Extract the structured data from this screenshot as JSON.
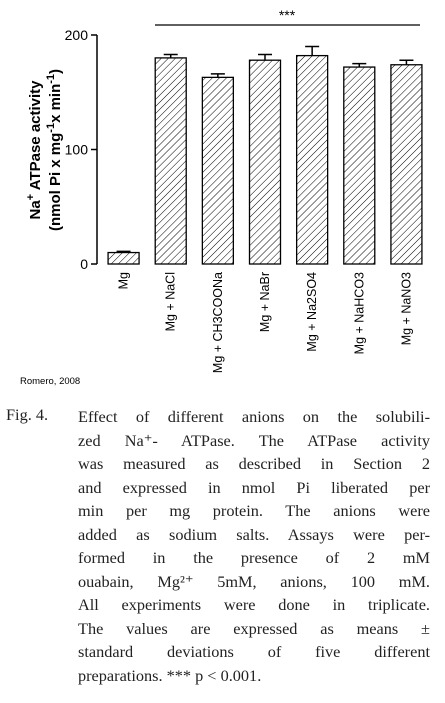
{
  "chart_data": {
    "type": "bar",
    "ylabel": [
      "Na",
      "+",
      " ATPase activity"
    ],
    "ylabel2": [
      "(nmol Pi x mg",
      "-1",
      "x min",
      "-1",
      ")"
    ],
    "categories": [
      "Mg",
      "Mg + NaCl",
      "Mg + CH3COONa",
      "Mg + NaBr",
      "Mg + Na2SO4",
      "Mg + NaHCO3",
      "Mg + NaNO3"
    ],
    "values": [
      10,
      180,
      163,
      178,
      182,
      172,
      174
    ],
    "errors": [
      1,
      3,
      3,
      5,
      8,
      3,
      4
    ],
    "color": "#000000",
    "ylim": [
      0,
      200
    ],
    "yticks": [
      0,
      100,
      200
    ],
    "annotation": "***",
    "credit": "Romero, 2008"
  },
  "caption": {
    "label": "Fig. 4.",
    "lines": [
      "Effect of different anions on the solubili-",
      "zed Na⁺- ATPase. The ATPase activity",
      "was measured as described in Section 2",
      "and expressed in nmol Pi liberated per",
      "min per mg protein. The anions were",
      "added as sodium salts. Assays were per-",
      "formed in the presence of 2 mM",
      "ouabain, Mg²⁺ 5mM, anions, 100 mM.",
      "All experiments were done in triplicate.",
      "The values are expressed as means ±",
      "standard deviations of five different",
      "preparations. *** p < 0.001."
    ]
  }
}
